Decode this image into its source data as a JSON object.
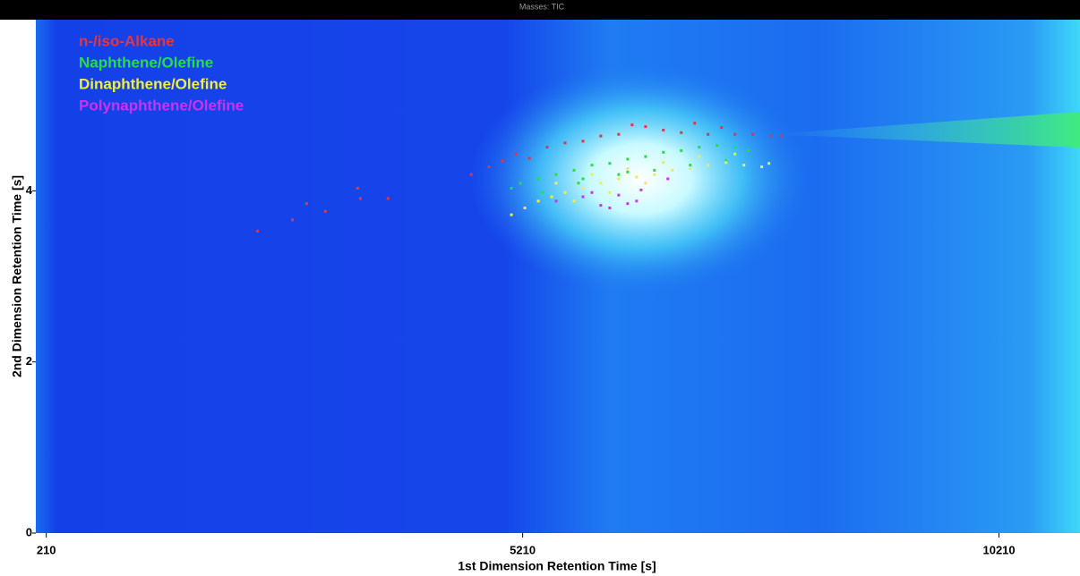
{
  "chart_data": {
    "type": "scatter",
    "title": "Masses: TIC",
    "x_label": "1st Dimension Retention Time [s]",
    "y_label": "2nd Dimension Retention Time [s]",
    "xlim": [
      100,
      11060
    ],
    "xticks": [
      210,
      5210,
      10210
    ],
    "ylim": [
      0,
      6
    ],
    "yticks": [
      0,
      2,
      4
    ],
    "legend": "top-left",
    "series": [
      {
        "name": "n-/iso-Alkane",
        "color": "#e8343c",
        "x": [
          2427,
          2793,
          2943,
          3140,
          3478,
          3506,
          3797,
          4670,
          4857,
          4998,
          5139,
          5280,
          5467,
          5655,
          5843,
          6030,
          6218,
          6359,
          6500,
          6687,
          6875,
          7016,
          7156,
          7297,
          7438,
          7626,
          7813,
          7926
        ],
        "values": [
          3.53,
          3.66,
          3.85,
          3.76,
          4.03,
          3.91,
          3.91,
          4.19,
          4.28,
          4.35,
          4.43,
          4.38,
          4.51,
          4.56,
          4.58,
          4.64,
          4.66,
          4.77,
          4.75,
          4.71,
          4.68,
          4.79,
          4.66,
          4.74,
          4.66,
          4.66,
          4.64,
          4.64
        ]
      },
      {
        "name": "Naphthene/Olefine",
        "color": "#22e040",
        "x": [
          5092,
          5186,
          5374,
          5561,
          5749,
          5937,
          6124,
          6312,
          6500,
          6687,
          6875,
          7063,
          7250,
          7438,
          7579,
          5843,
          6218,
          6593,
          6969,
          7344,
          5420,
          5796,
          6312
        ],
        "values": [
          4.03,
          4.09,
          4.14,
          4.19,
          4.24,
          4.3,
          4.32,
          4.37,
          4.4,
          4.45,
          4.47,
          4.51,
          4.53,
          4.51,
          4.47,
          4.14,
          4.19,
          4.24,
          4.3,
          4.35,
          3.98,
          4.09,
          4.22
        ]
      },
      {
        "name": "Dinaphthene/Olefine",
        "color": "#f0ee40",
        "x": [
          5092,
          5233,
          5374,
          5514,
          5655,
          5843,
          6030,
          6218,
          6406,
          6593,
          6781,
          6969,
          7156,
          7344,
          7532,
          7719,
          7795,
          5561,
          5937,
          6312,
          6687,
          7063,
          7438,
          5749,
          6124,
          6500
        ],
        "values": [
          3.72,
          3.8,
          3.88,
          3.93,
          3.98,
          4.03,
          4.09,
          4.14,
          4.16,
          4.19,
          4.24,
          4.26,
          4.3,
          4.33,
          4.3,
          4.28,
          4.32,
          4.09,
          4.19,
          4.26,
          4.33,
          4.4,
          4.43,
          3.88,
          3.98,
          4.09
        ]
      },
      {
        "name": "Polynaphthene/Olefine",
        "color": "#d030f0",
        "x": [
          5561,
          5843,
          6030,
          6124,
          6312,
          6453,
          6218,
          6734,
          5937,
          6406
        ],
        "values": [
          3.88,
          3.93,
          3.83,
          3.8,
          3.85,
          4.01,
          3.95,
          4.14,
          3.98,
          3.88
        ]
      }
    ]
  }
}
